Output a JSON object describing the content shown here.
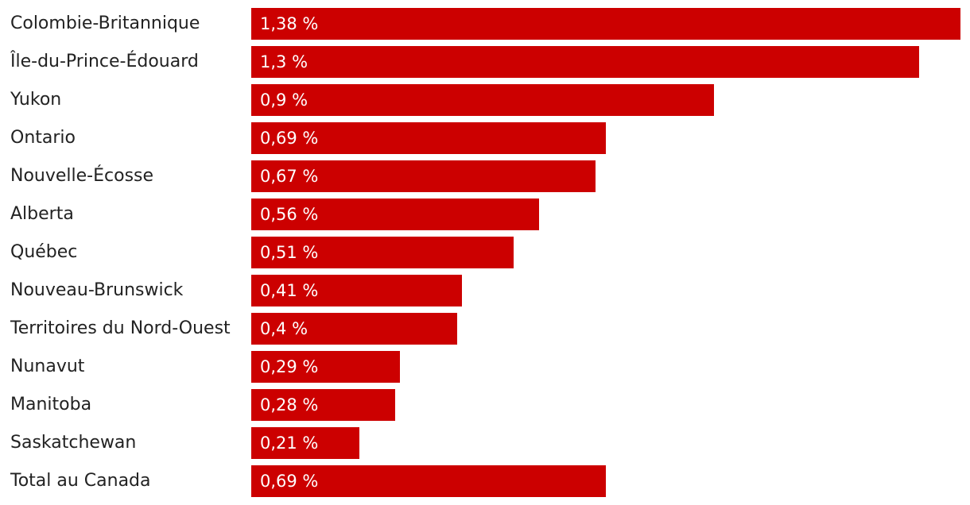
{
  "colors": {
    "bar": "#cc0000",
    "label_text": "#222222",
    "value_text": "#ffffff"
  },
  "chart_data": {
    "type": "bar",
    "orientation": "horizontal",
    "categories": [
      "Colombie-Britannique",
      "Île-du-Prince-Édouard",
      "Yukon",
      "Ontario",
      "Nouvelle-Écosse",
      "Alberta",
      "Québec",
      "Nouveau-Brunswick",
      "Territoires du Nord-Ouest",
      "Nunavut",
      "Manitoba",
      "Saskatchewan",
      "Total au Canada"
    ],
    "values": [
      1.38,
      1.3,
      0.9,
      0.69,
      0.67,
      0.56,
      0.51,
      0.41,
      0.4,
      0.29,
      0.28,
      0.21,
      0.69
    ],
    "value_labels": [
      "1,38 %",
      "1,3 %",
      "0,9 %",
      "0,69 %",
      "0,67 %",
      "0,56 %",
      "0,51 %",
      "0,41 %",
      "0,4 %",
      "0,29 %",
      "0,28 %",
      "0,21 %",
      "0,69 %"
    ],
    "xlim": [
      0,
      1.38
    ],
    "grid": false,
    "legend": "none"
  }
}
